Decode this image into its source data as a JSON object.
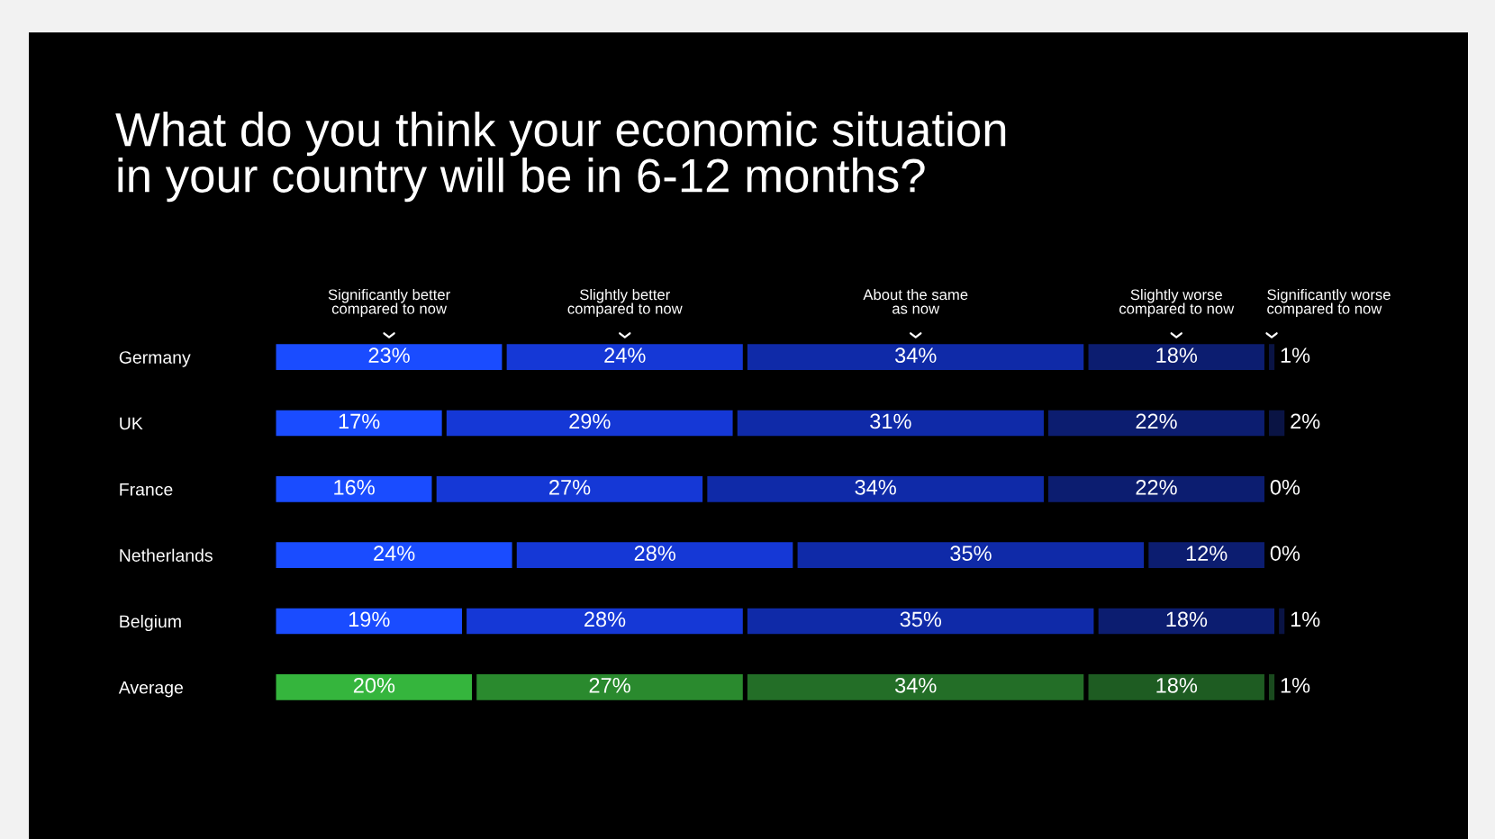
{
  "chart_data": {
    "type": "bar",
    "orientation": "horizontal",
    "stacked": true,
    "title": "What do you think your economic situation\nin your country will be in 6-12 months?",
    "categories": [
      "Germany",
      "UK",
      "France",
      "Netherlands",
      "Belgium",
      "Average"
    ],
    "series": [
      {
        "name": "Significantly better\ncompared to now",
        "colors": [
          "#1a4cff",
          "#1a4cff",
          "#1a4cff",
          "#1a4cff",
          "#1a4cff",
          "#35b53d"
        ],
        "values": [
          23,
          17,
          16,
          24,
          19,
          20
        ],
        "value_labels": [
          "23%",
          "17%",
          "16%",
          "24%",
          "19%",
          "20%"
        ]
      },
      {
        "name": "Slightly better\ncompared to now",
        "colors": [
          "#1538d6",
          "#1538d6",
          "#1538d6",
          "#1538d6",
          "#1538d6",
          "#2a8a2e"
        ],
        "values": [
          24,
          29,
          27,
          28,
          28,
          27
        ],
        "value_labels": [
          "24%",
          "29%",
          "27%",
          "28%",
          "28%",
          "27%"
        ]
      },
      {
        "name": "About the same\nas now",
        "colors": [
          "#0f2aa8",
          "#0f2aa8",
          "#0f2aa8",
          "#0f2aa8",
          "#0f2aa8",
          "#236e27"
        ],
        "values": [
          34,
          31,
          34,
          35,
          35,
          34
        ],
        "value_labels": [
          "34%",
          "31%",
          "34%",
          "35%",
          "35%",
          "34%"
        ]
      },
      {
        "name": "Slightly worse\ncompared to now",
        "colors": [
          "#0c1d70",
          "#0c1d70",
          "#0c1d70",
          "#0c1d70",
          "#0c1d70",
          "#1e5c22"
        ],
        "values": [
          18,
          22,
          22,
          12,
          18,
          18
        ],
        "value_labels": [
          "18%",
          "22%",
          "22%",
          "12%",
          "18%",
          "18%"
        ]
      },
      {
        "name": "Significantly worse\ncompared to now",
        "colors": [
          "#0a1444",
          "#0a1444",
          "#0a1444",
          "#0a1444",
          "#0a1444",
          "#1a4a1e"
        ],
        "values": [
          1,
          2,
          0,
          0,
          1,
          1
        ],
        "value_labels": [
          "1%",
          "2%",
          "0%",
          "0%",
          "1%",
          "1%"
        ]
      }
    ]
  }
}
